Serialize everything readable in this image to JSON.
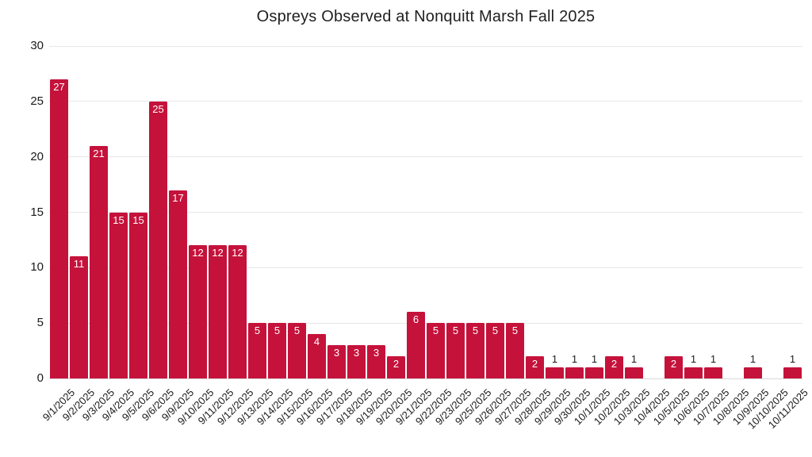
{
  "chart_data": {
    "type": "bar",
    "title": "Ospreys Observed at Nonquitt Marsh Fall 2025",
    "xlabel": "",
    "ylabel": "",
    "categories": [
      "9/1/2025",
      "9/2/2025",
      "9/3/2025",
      "9/4/2025",
      "9/5/2025",
      "9/6/2025",
      "9/9/2025",
      "9/10/2025",
      "9/11/2025",
      "9/12/2025",
      "9/13/2025",
      "9/14/2025",
      "9/15/2025",
      "9/16/2025",
      "9/17/2025",
      "9/18/2025",
      "9/19/2025",
      "9/20/2025",
      "9/21/2025",
      "9/22/2025",
      "9/23/2025",
      "9/25/2025",
      "9/26/2025",
      "9/27/2025",
      "9/28/2025",
      "9/29/2025",
      "9/30/2025",
      "10/1/2025",
      "10/2/2025",
      "10/3/2025",
      "10/4/2025",
      "10/5/2025",
      "10/6/2025",
      "10/7/2025",
      "10/8/2025",
      "10/9/2025",
      "10/10/2025",
      "10/11/2025"
    ],
    "values": [
      27,
      11,
      21,
      15,
      15,
      25,
      17,
      12,
      12,
      12,
      5,
      5,
      5,
      4,
      3,
      3,
      3,
      2,
      6,
      5,
      5,
      5,
      5,
      5,
      2,
      1,
      1,
      1,
      2,
      1,
      0,
      2,
      1,
      1,
      0,
      1,
      0,
      1
    ],
    "ylim": [
      0,
      30
    ],
    "yticks": [
      0,
      5,
      10,
      15,
      20,
      25,
      30
    ],
    "grid": true,
    "legend_position": "none",
    "bar_color": "#C5123B",
    "value_label_color_inside": "#FFFFFF",
    "value_label_color_above": "#1A1A1A",
    "axis_text_color": "#1A1A1A",
    "gridline_color": "#E7E7E7",
    "background_color": "#FFFFFF"
  }
}
